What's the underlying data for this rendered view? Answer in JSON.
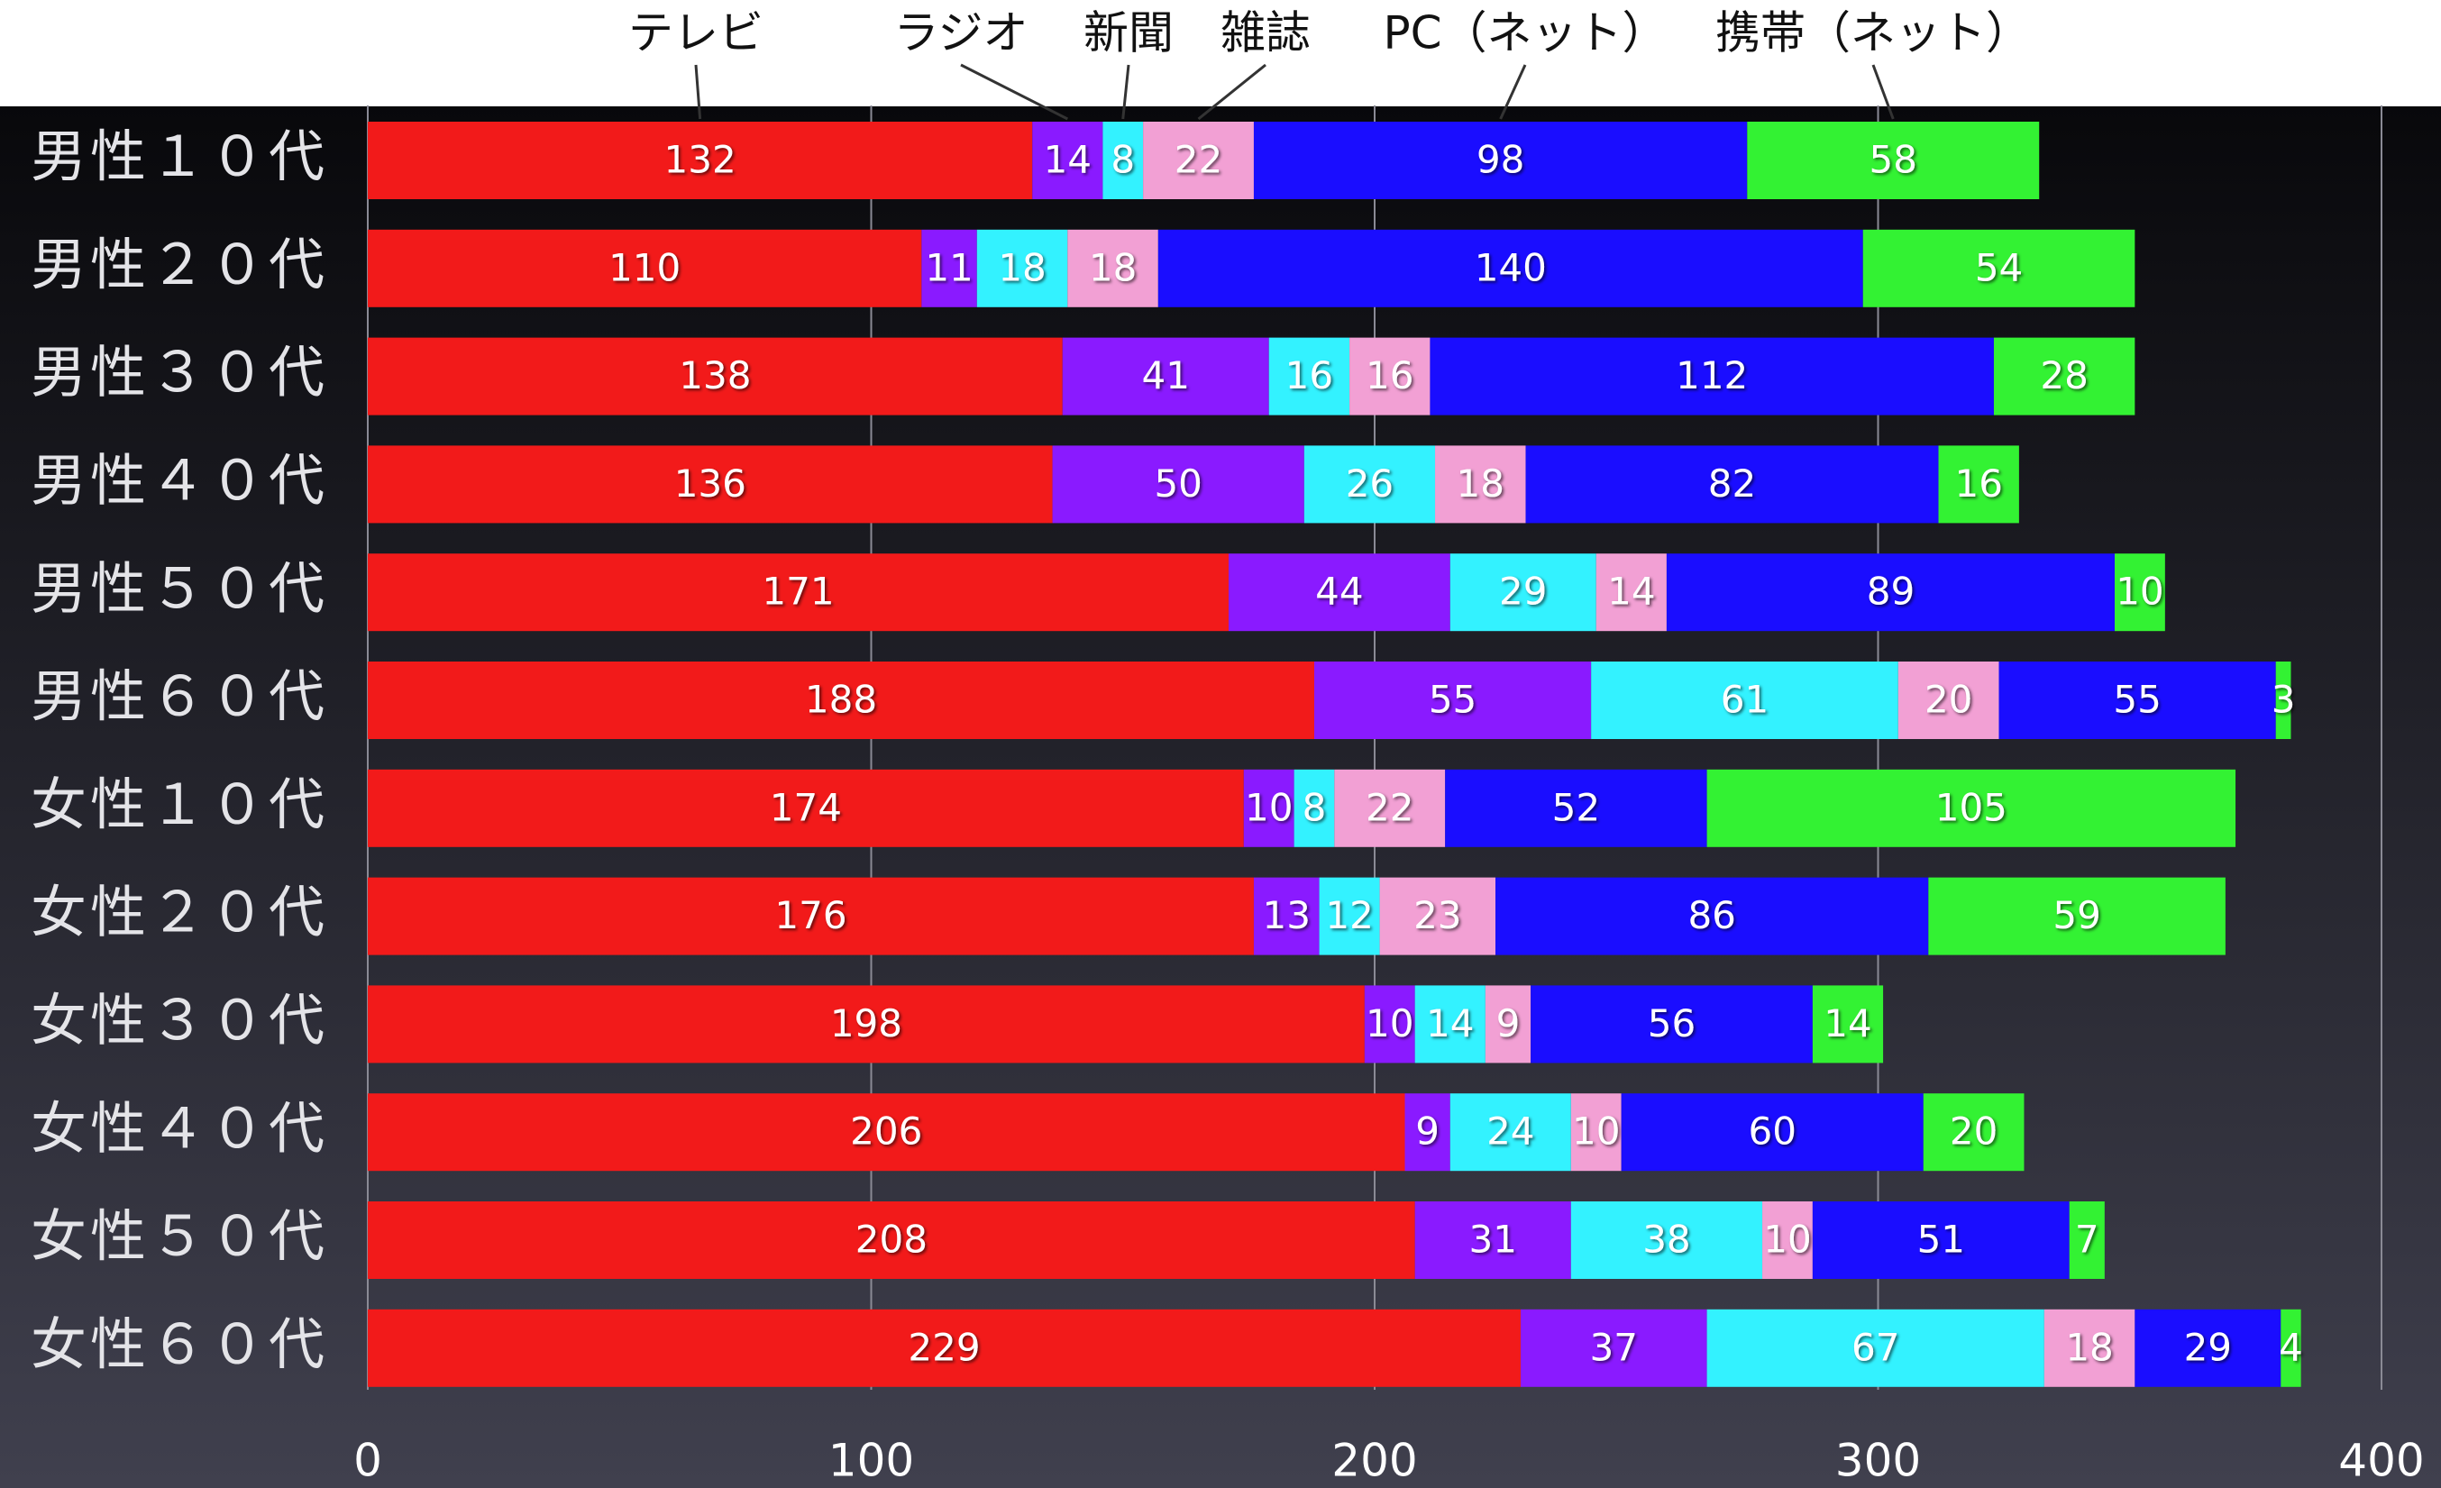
{
  "chart_data": {
    "type": "stacked-barh",
    "categories": [
      "男性１０代",
      "男性２０代",
      "男性３０代",
      "男性４０代",
      "男性５０代",
      "男性６０代",
      "女性１０代",
      "女性２０代",
      "女性３０代",
      "女性４０代",
      "女性５０代",
      "女性６０代"
    ],
    "series": [
      {
        "name": "テレビ",
        "color": "#f21a1a",
        "values": [
          132,
          110,
          138,
          136,
          171,
          188,
          174,
          176,
          198,
          206,
          208,
          229
        ]
      },
      {
        "name": "ラジオ",
        "color": "#8a1aff",
        "values": [
          14,
          11,
          41,
          50,
          44,
          55,
          10,
          13,
          10,
          9,
          31,
          37
        ]
      },
      {
        "name": "新聞",
        "color": "#33f2ff",
        "values": [
          8,
          18,
          16,
          26,
          29,
          61,
          8,
          12,
          14,
          24,
          38,
          67
        ]
      },
      {
        "name": "雑誌",
        "color": "#f2a0d4",
        "values": [
          22,
          18,
          16,
          18,
          14,
          20,
          22,
          23,
          9,
          10,
          10,
          18
        ]
      },
      {
        "name": "PC（ネット）",
        "color": "#1a0dff",
        "values": [
          98,
          140,
          112,
          82,
          89,
          55,
          52,
          86,
          56,
          60,
          51,
          29
        ]
      },
      {
        "name": "携帯（ネット）",
        "color": "#33f233",
        "values": [
          58,
          54,
          28,
          16,
          10,
          3,
          105,
          59,
          14,
          20,
          7,
          4
        ]
      }
    ],
    "xlim": [
      0,
      400
    ],
    "xticks": [
      0,
      100,
      200,
      300,
      400
    ],
    "grid": true
  }
}
